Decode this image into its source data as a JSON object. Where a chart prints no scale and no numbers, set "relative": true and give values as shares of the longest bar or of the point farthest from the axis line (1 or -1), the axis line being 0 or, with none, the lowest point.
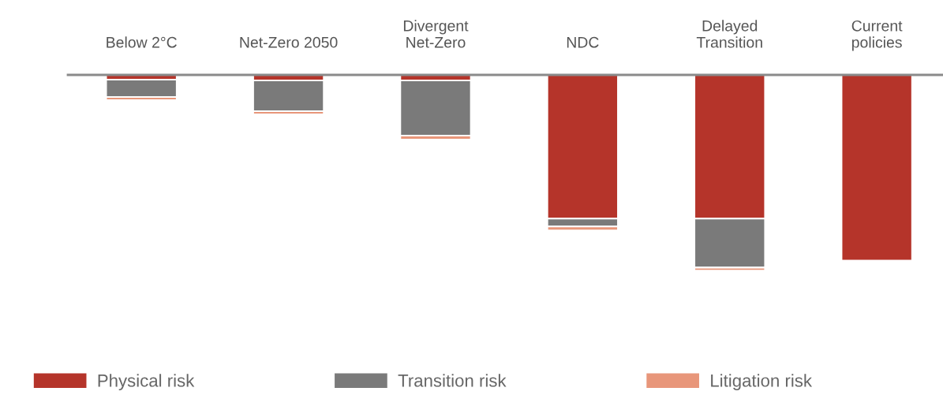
{
  "chart_data": {
    "type": "bar",
    "relative": true,
    "stacked": true,
    "categories": [
      "Below 2°C",
      "Net-Zero 2050",
      "Divergent\nNet-Zero",
      "NDC",
      "Delayed\nTransition",
      "Current\npolicies"
    ],
    "series": [
      {
        "name": "Physical risk",
        "color": "#b5342a",
        "values": [
          -0.024,
          -0.028,
          -0.028,
          -0.734,
          -0.734,
          -0.948
        ]
      },
      {
        "name": "Transition risk",
        "color": "#7a7a7a",
        "values": [
          -0.089,
          -0.157,
          -0.282,
          -0.04,
          -0.25,
          0
        ]
      },
      {
        "name": "Litigation risk",
        "color": "#e8967a",
        "values": [
          -0.016,
          -0.016,
          -0.02,
          -0.02,
          -0.016,
          0
        ]
      }
    ],
    "legend": "bottom",
    "grid": false
  }
}
